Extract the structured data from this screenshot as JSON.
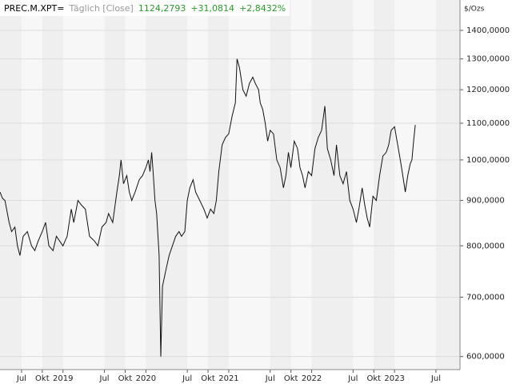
{
  "chart_data": {
    "type": "line",
    "symbol": "PREC.M.XPT=",
    "interval": "Täglich [Close]",
    "last": "1124,2793",
    "change": "+31,0814",
    "change_pct": "+2,8432%",
    "unit": "$/Ozs",
    "log_scale": true,
    "color": "#111111",
    "x": [
      2018.24,
      2018.27,
      2018.3,
      2018.35,
      2018.38,
      2018.42,
      2018.45,
      2018.48,
      2018.52,
      2018.57,
      2018.62,
      2018.66,
      2018.7,
      2018.75,
      2018.79,
      2018.83,
      2018.88,
      2018.92,
      2019.0,
      2019.05,
      2019.1,
      2019.13,
      2019.18,
      2019.22,
      2019.27,
      2019.32,
      2019.38,
      2019.42,
      2019.47,
      2019.52,
      2019.55,
      2019.6,
      2019.65,
      2019.68,
      2019.7,
      2019.73,
      2019.77,
      2019.8,
      2019.83,
      2019.87,
      2019.92,
      2019.96,
      2020.0,
      2020.03,
      2020.05,
      2020.07,
      2020.09,
      2020.11,
      2020.13,
      2020.16,
      2020.18,
      2020.2,
      2020.24,
      2020.28,
      2020.32,
      2020.36,
      2020.4,
      2020.43,
      2020.47,
      2020.5,
      2020.53,
      2020.57,
      2020.6,
      2020.65,
      2020.7,
      2020.74,
      2020.78,
      2020.82,
      2020.85,
      2020.88,
      2020.92,
      2020.96,
      2021.0,
      2021.04,
      2021.08,
      2021.1,
      2021.13,
      2021.17,
      2021.21,
      2021.25,
      2021.29,
      2021.32,
      2021.36,
      2021.38,
      2021.41,
      2021.44,
      2021.47,
      2021.5,
      2021.54,
      2021.58,
      2021.62,
      2021.66,
      2021.69,
      2021.72,
      2021.75,
      2021.79,
      2021.83,
      2021.86,
      2021.89,
      2021.92,
      2021.96,
      2022.0,
      2022.04,
      2022.08,
      2022.12,
      2022.16,
      2022.19,
      2022.23,
      2022.27,
      2022.3,
      2022.34,
      2022.38,
      2022.42,
      2022.46,
      2022.5,
      2022.54,
      2022.57,
      2022.61,
      2022.64,
      2022.67,
      2022.7,
      2022.74,
      2022.78,
      2022.82,
      2022.86,
      2022.9,
      2022.93,
      2022.96,
      2023.0,
      2023.03,
      2023.07,
      2023.1,
      2023.13,
      2023.16,
      2023.19,
      2023.21,
      2023.23,
      2023.25
    ],
    "values": [
      920,
      905,
      900,
      850,
      830,
      840,
      800,
      780,
      820,
      830,
      800,
      790,
      810,
      830,
      850,
      800,
      790,
      820,
      800,
      820,
      880,
      850,
      900,
      890,
      880,
      820,
      810,
      800,
      840,
      850,
      870,
      850,
      920,
      960,
      1000,
      940,
      960,
      920,
      900,
      920,
      950,
      960,
      980,
      1000,
      970,
      1020,
      960,
      900,
      870,
      780,
      600,
      720,
      750,
      780,
      800,
      820,
      830,
      820,
      830,
      900,
      930,
      950,
      920,
      900,
      880,
      860,
      880,
      870,
      900,
      970,
      1040,
      1060,
      1070,
      1120,
      1160,
      1300,
      1270,
      1200,
      1180,
      1220,
      1240,
      1220,
      1200,
      1160,
      1140,
      1100,
      1050,
      1080,
      1070,
      1000,
      980,
      930,
      960,
      1020,
      980,
      1050,
      1030,
      980,
      960,
      930,
      970,
      960,
      1030,
      1060,
      1080,
      1150,
      1030,
      1000,
      960,
      1040,
      960,
      940,
      970,
      900,
      880,
      850,
      880,
      930,
      890,
      860,
      840,
      910,
      900,
      960,
      1010,
      1020,
      1040,
      1080,
      1090,
      1050,
      1000,
      960,
      920,
      960,
      990,
      1000,
      1050,
      1095
    ],
    "xlim": [
      2018.24,
      2023.79
    ],
    "xticks": [
      {
        "value": 2018.5,
        "label": "Jul"
      },
      {
        "value": 2018.75,
        "label": "Okt"
      },
      {
        "value": 2019,
        "label": "2019"
      },
      {
        "value": 2019.5,
        "label": "Jul"
      },
      {
        "value": 2019.75,
        "label": "Okt"
      },
      {
        "value": 2020,
        "label": "2020"
      },
      {
        "value": 2020.5,
        "label": "Jul"
      },
      {
        "value": 2020.75,
        "label": "Okt"
      },
      {
        "value": 2021,
        "label": "2021"
      },
      {
        "value": 2021.5,
        "label": "Jul"
      },
      {
        "value": 2021.75,
        "label": "Okt"
      },
      {
        "value": 2022,
        "label": "2022"
      },
      {
        "value": 2022.5,
        "label": "Jul"
      },
      {
        "value": 2022.75,
        "label": "Okt"
      },
      {
        "value": 2023,
        "label": "2023"
      },
      {
        "value": 2023.5,
        "label": "Jul"
      }
    ],
    "ylim": [
      580,
      1515
    ],
    "yticks": [
      {
        "value": 600,
        "label": "600,0000"
      },
      {
        "value": 700,
        "label": "700,0000"
      },
      {
        "value": 800,
        "label": "800,0000"
      },
      {
        "value": 900,
        "label": "900,0000"
      },
      {
        "value": 1000,
        "label": "1000,0000"
      },
      {
        "value": 1100,
        "label": "1100,0000"
      },
      {
        "value": 1200,
        "label": "1200,0000"
      },
      {
        "value": 1300,
        "label": "1300,0000"
      },
      {
        "value": 1400,
        "label": "1400,0000"
      }
    ],
    "grid": true
  }
}
